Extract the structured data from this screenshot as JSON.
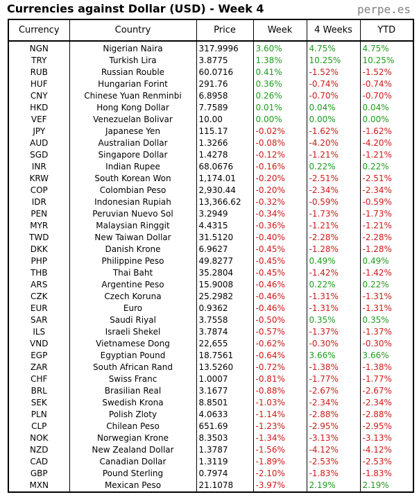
{
  "title": "Currencies against Dollar (USD) - Week 4",
  "site": "perpe.es",
  "colors": {
    "positive": "#1f9a1f",
    "negative": "#d01818"
  },
  "headers": [
    "Currency",
    "Country",
    "Price",
    "Week",
    "4 Weeks",
    "YTD"
  ],
  "rows": [
    {
      "code": "NGN",
      "country": "Nigerian Naira",
      "price": "317.9996",
      "week": "3.60%",
      "w4": "4.75%",
      "ytd": "4.75%"
    },
    {
      "code": "TRY",
      "country": "Turkish Lira",
      "price": "3.8775",
      "week": "1.38%",
      "w4": "10.25%",
      "ytd": "10.25%"
    },
    {
      "code": "RUB",
      "country": "Russian Rouble",
      "price": "60.0716",
      "week": "0.41%",
      "w4": "-1.52%",
      "ytd": "-1.52%"
    },
    {
      "code": "HUF",
      "country": "Hungarian Forint",
      "price": "291.76",
      "week": "0.36%",
      "w4": "-0.74%",
      "ytd": "-0.74%"
    },
    {
      "code": "CNY",
      "country": "Chinese Yuan Renminbi",
      "price": "6.8958",
      "week": "0.26%",
      "w4": "-0.70%",
      "ytd": "-0.70%"
    },
    {
      "code": "HKD",
      "country": "Hong Kong Dollar",
      "price": "7.7589",
      "week": "0.01%",
      "w4": "0.04%",
      "ytd": "0.04%"
    },
    {
      "code": "VEF",
      "country": "Venezuelan Bolivar",
      "price": "10.00",
      "week": "0.00%",
      "w4": "0.00%",
      "ytd": "0.00%"
    },
    {
      "code": "JPY",
      "country": "Japanese Yen",
      "price": "115.17",
      "week": "-0.02%",
      "w4": "-1.62%",
      "ytd": "-1.62%"
    },
    {
      "code": "AUD",
      "country": "Australian Dollar",
      "price": "1.3266",
      "week": "-0.08%",
      "w4": "-4.20%",
      "ytd": "-4.20%"
    },
    {
      "code": "SGD",
      "country": "Singapore Dollar",
      "price": "1.4278",
      "week": "-0.12%",
      "w4": "-1.21%",
      "ytd": "-1.21%"
    },
    {
      "code": "INR",
      "country": "Indian Rupee",
      "price": "68.0676",
      "week": "-0.16%",
      "w4": "0.22%",
      "ytd": "0.22%"
    },
    {
      "code": "KRW",
      "country": "South Korean Won",
      "price": "1,174.01",
      "week": "-0.20%",
      "w4": "-2.51%",
      "ytd": "-2.51%"
    },
    {
      "code": "COP",
      "country": "Colombian Peso",
      "price": "2,930.44",
      "week": "-0.20%",
      "w4": "-2.34%",
      "ytd": "-2.34%"
    },
    {
      "code": "IDR",
      "country": "Indonesian Rupiah",
      "price": "13,366.62",
      "week": "-0.32%",
      "w4": "-0.59%",
      "ytd": "-0.59%"
    },
    {
      "code": "PEN",
      "country": "Peruvian Nuevo Sol",
      "price": "3.2949",
      "week": "-0.34%",
      "w4": "-1.73%",
      "ytd": "-1.73%"
    },
    {
      "code": "MYR",
      "country": "Malaysian Ringgit",
      "price": "4.4315",
      "week": "-0.36%",
      "w4": "-1.21%",
      "ytd": "-1.21%"
    },
    {
      "code": "TWD",
      "country": "New Taiwan Dollar",
      "price": "31.5120",
      "week": "-0.40%",
      "w4": "-2.28%",
      "ytd": "-2.28%"
    },
    {
      "code": "DKK",
      "country": "Danish Krone",
      "price": "6.9627",
      "week": "-0.45%",
      "w4": "-1.28%",
      "ytd": "-1.28%"
    },
    {
      "code": "PHP",
      "country": "Philippine Peso",
      "price": "49.8277",
      "week": "-0.45%",
      "w4": "0.49%",
      "ytd": "0.49%"
    },
    {
      "code": "THB",
      "country": "Thai Baht",
      "price": "35.2804",
      "week": "-0.45%",
      "w4": "-1.42%",
      "ytd": "-1.42%"
    },
    {
      "code": "ARS",
      "country": "Argentine Peso",
      "price": "15.9008",
      "week": "-0.46%",
      "w4": "0.22%",
      "ytd": "0.22%"
    },
    {
      "code": "CZK",
      "country": "Czech Koruna",
      "price": "25.2982",
      "week": "-0.46%",
      "w4": "-1.31%",
      "ytd": "-1.31%"
    },
    {
      "code": "EUR",
      "country": "Euro",
      "price": "0.9362",
      "week": "-0.46%",
      "w4": "-1.31%",
      "ytd": "-1.31%"
    },
    {
      "code": "SAR",
      "country": "Saudi Riyal",
      "price": "3.7558",
      "week": "-0.50%",
      "w4": "0.35%",
      "ytd": "0.35%"
    },
    {
      "code": "ILS",
      "country": "Israeli Shekel",
      "price": "3.7874",
      "week": "-0.57%",
      "w4": "-1.37%",
      "ytd": "-1.37%"
    },
    {
      "code": "VND",
      "country": "Vietnamese Dong",
      "price": "22,655",
      "week": "-0.62%",
      "w4": "-0.30%",
      "ytd": "-0.30%"
    },
    {
      "code": "EGP",
      "country": "Egyptian Pound",
      "price": "18.7561",
      "week": "-0.64%",
      "w4": "3.66%",
      "ytd": "3.66%"
    },
    {
      "code": "ZAR",
      "country": "South African Rand",
      "price": "13.5260",
      "week": "-0.72%",
      "w4": "-1.38%",
      "ytd": "-1.38%"
    },
    {
      "code": "CHF",
      "country": "Swiss Franc",
      "price": "1.0007",
      "week": "-0.81%",
      "w4": "-1.77%",
      "ytd": "-1.77%"
    },
    {
      "code": "BRL",
      "country": "Brasilian Real",
      "price": "3.1677",
      "week": "-0.88%",
      "w4": "-2.67%",
      "ytd": "-2.67%"
    },
    {
      "code": "SEK",
      "country": "Swedish Krona",
      "price": "8.8501",
      "week": "-1.03%",
      "w4": "-2.34%",
      "ytd": "-2.34%"
    },
    {
      "code": "PLN",
      "country": "Polish Zloty",
      "price": "4.0633",
      "week": "-1.14%",
      "w4": "-2.88%",
      "ytd": "-2.88%"
    },
    {
      "code": "CLP",
      "country": "Chilean Peso",
      "price": "651.69",
      "week": "-1.23%",
      "w4": "-2.95%",
      "ytd": "-2.95%"
    },
    {
      "code": "NOK",
      "country": "Norwegian Krone",
      "price": "8.3503",
      "week": "-1.34%",
      "w4": "-3.13%",
      "ytd": "-3.13%"
    },
    {
      "code": "NZD",
      "country": "New Zealand Dollar",
      "price": "1.3787",
      "week": "-1.56%",
      "w4": "-4.12%",
      "ytd": "-4.12%"
    },
    {
      "code": "CAD",
      "country": "Canadian Dollar",
      "price": "1.3119",
      "week": "-1.89%",
      "w4": "-2.53%",
      "ytd": "-2.53%"
    },
    {
      "code": "GBP",
      "country": "Pound Sterling",
      "price": "0.7974",
      "week": "-2.10%",
      "w4": "-1.83%",
      "ytd": "-1.83%"
    },
    {
      "code": "MXN",
      "country": "Mexican Peso",
      "price": "21.1078",
      "week": "-3.97%",
      "w4": "2.19%",
      "ytd": "2.19%"
    }
  ]
}
